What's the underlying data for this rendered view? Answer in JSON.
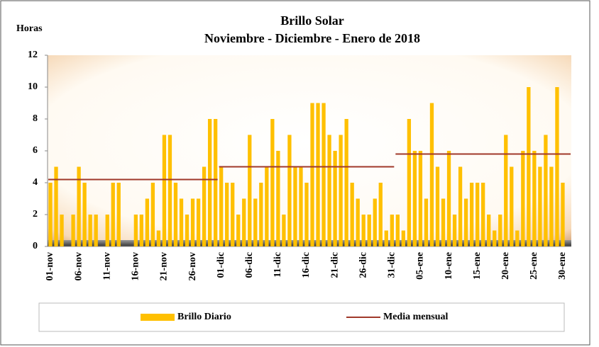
{
  "chart_data": {
    "type": "bar",
    "title": "Brillo  Solar",
    "subtitle": "Noviembre - Diciembre - Enero de 2018",
    "y_label": "Horas",
    "categories": [
      "01-nov",
      null,
      null,
      null,
      null,
      "06-nov",
      null,
      null,
      null,
      null,
      "11-nov",
      null,
      null,
      null,
      null,
      "16-nov",
      null,
      null,
      null,
      null,
      "21-nov",
      null,
      null,
      null,
      null,
      "26-nov",
      null,
      null,
      null,
      null,
      "01-dic",
      null,
      null,
      null,
      null,
      "06-dic",
      null,
      null,
      null,
      null,
      "11-dic",
      null,
      null,
      null,
      null,
      "16-dic",
      null,
      null,
      null,
      null,
      "21-dic",
      null,
      null,
      null,
      null,
      "26-dic",
      null,
      null,
      null,
      null,
      "31-dic",
      null,
      null,
      null,
      null,
      "05-ene",
      null,
      null,
      null,
      null,
      "10-ene",
      null,
      null,
      null,
      null,
      "15-ene",
      null,
      null,
      null,
      null,
      "20-ene",
      null,
      null,
      null,
      null,
      "25-ene",
      null,
      null,
      null,
      null,
      "30-ene",
      null
    ],
    "series": [
      {
        "name": "Brillo Diario",
        "color": "#ffc000",
        "type": "bar",
        "values": [
          4,
          5,
          2,
          0,
          2,
          5,
          4,
          2,
          2,
          0,
          2,
          4,
          4,
          0,
          0,
          2,
          2,
          3,
          4,
          1,
          7,
          7,
          4,
          3,
          2,
          3,
          3,
          5,
          8,
          8,
          5,
          4,
          4,
          2,
          3,
          7,
          3,
          4,
          5,
          8,
          6,
          2,
          7,
          5,
          5,
          4,
          9,
          9,
          9,
          7,
          6,
          7,
          8,
          4,
          3,
          2,
          2,
          3,
          4,
          1,
          2,
          2,
          1,
          8,
          6,
          6,
          3,
          9,
          5,
          3,
          6,
          2,
          5,
          3,
          4,
          4,
          4,
          2,
          1,
          2,
          7,
          5,
          1,
          6,
          10,
          6,
          5,
          7,
          5,
          10,
          4,
          0
        ]
      },
      {
        "name": "Media mensual",
        "color": "#a0382a",
        "type": "line",
        "values": [
          4.2,
          4.2,
          4.2,
          4.2,
          4.2,
          4.2,
          4.2,
          4.2,
          4.2,
          4.2,
          4.2,
          4.2,
          4.2,
          4.2,
          4.2,
          4.2,
          4.2,
          4.2,
          4.2,
          4.2,
          4.2,
          4.2,
          4.2,
          4.2,
          4.2,
          4.2,
          4.2,
          4.2,
          4.2,
          4.2,
          5,
          5,
          5,
          5,
          5,
          5,
          5,
          5,
          5,
          5,
          5,
          5,
          5,
          5,
          5,
          5,
          5,
          5,
          5,
          5,
          5,
          5,
          5,
          5,
          5,
          5,
          5,
          5,
          5,
          5,
          5,
          5.8,
          5.8,
          5.8,
          5.8,
          5.8,
          5.8,
          5.8,
          5.8,
          5.8,
          5.8,
          5.8,
          5.8,
          5.8,
          5.8,
          5.8,
          5.8,
          5.8,
          5.8,
          5.8,
          5.8,
          5.8,
          5.8,
          5.8,
          5.8,
          5.8,
          5.8,
          5.8,
          5.8,
          5.8,
          5.8,
          5.8
        ]
      }
    ],
    "ylim": [
      0,
      12
    ],
    "yticks": [
      0,
      2,
      4,
      6,
      8,
      10,
      12
    ],
    "legend": "bottom"
  }
}
